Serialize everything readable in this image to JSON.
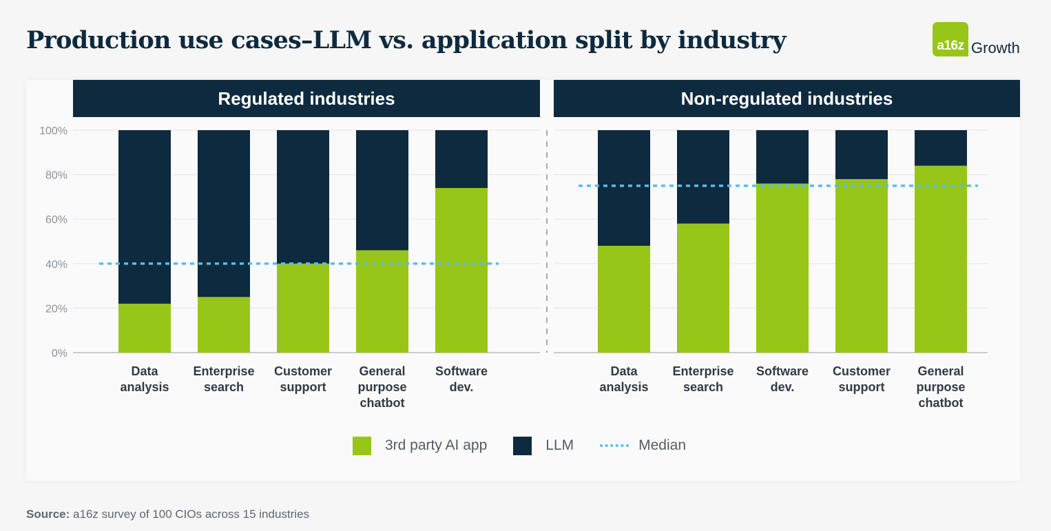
{
  "title": "Production use cases–LLM vs. application split by industry",
  "logo": {
    "mark": "a16z",
    "word": "Growth"
  },
  "source": {
    "label": "Source:",
    "text": "a16z survey of 100 CIOs across 15 industries"
  },
  "colors": {
    "app": "#97c619",
    "llm": "#0e2a3f",
    "median": "#56bdea",
    "header": "#0e2a3f",
    "grid": "#e4e4e4",
    "axis_text": "#8a9198"
  },
  "chart_data": {
    "type": "bar",
    "stacked": true,
    "percent_stacked": true,
    "yticks": [
      "0%",
      "20%",
      "40%",
      "60%",
      "80%",
      "100%"
    ],
    "ylim": [
      0,
      100
    ],
    "grid": true,
    "legend": [
      {
        "label": "3rd party AI app",
        "kind": "swatch",
        "color": "#97c619"
      },
      {
        "label": "LLM",
        "kind": "swatch",
        "color": "#0e2a3f"
      },
      {
        "label": "Median",
        "kind": "dotted-line",
        "color": "#56bdea"
      }
    ],
    "legend_position": "bottom",
    "panels": [
      {
        "title": "Regulated industries",
        "categories": [
          [
            "Data",
            "analysis"
          ],
          [
            "Enterprise",
            "search"
          ],
          [
            "Customer",
            "support"
          ],
          [
            "General",
            "purpose",
            "chatbot"
          ],
          [
            "Software",
            "dev."
          ]
        ],
        "series": [
          {
            "name": "3rd party AI app",
            "values": [
              22,
              25,
              40,
              46,
              74
            ]
          },
          {
            "name": "LLM",
            "values": [
              78,
              75,
              60,
              54,
              26
            ]
          }
        ],
        "median": 40
      },
      {
        "title": "Non-regulated industries",
        "categories": [
          [
            "Data",
            "analysis"
          ],
          [
            "Enterprise",
            "search"
          ],
          [
            "Software",
            "dev."
          ],
          [
            "Customer",
            "support"
          ],
          [
            "General",
            "purpose",
            "chatbot"
          ]
        ],
        "series": [
          {
            "name": "3rd party AI app",
            "values": [
              48,
              58,
              76,
              78,
              84
            ]
          },
          {
            "name": "LLM",
            "values": [
              52,
              42,
              24,
              22,
              16
            ]
          }
        ],
        "median": 75
      }
    ]
  }
}
